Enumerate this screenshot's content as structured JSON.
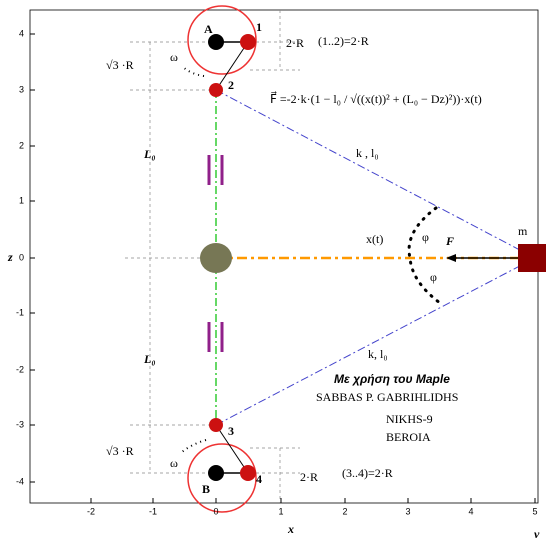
{
  "axes": {
    "x_label": "x",
    "z_label": "z",
    "v_label": "v",
    "x_ticks": [
      "-2",
      "-1",
      "0",
      "1",
      "2",
      "3",
      "4",
      "5"
    ],
    "z_ticks": [
      "4",
      "3",
      "2",
      "1",
      "0",
      "-1",
      "-2",
      "-3",
      "-4"
    ]
  },
  "top": {
    "point_a": "A",
    "point_1": "1",
    "point_2": "2",
    "omega": "ω",
    "distance": "2·R",
    "relation": "(1..2)=2·R",
    "sqrt3": "√3 ·R"
  },
  "bottom": {
    "point_b": "B",
    "point_4": "4",
    "point_3": "3",
    "omega": "ω",
    "distance": "2·R",
    "relation": "(3..4)=2·R",
    "sqrt3": "√3 ·R"
  },
  "formula": "F⃗ =-2·k·(1 − l₀ / √((x(t))² + (L₀ − Dz)²))·x(t)",
  "labels": {
    "spring_top": "k , l₀",
    "spring_bottom": "k, l₀",
    "length_top": "L₀",
    "length_bottom": "L₀",
    "xt": "x(t)",
    "phi_top": "φ",
    "phi_bottom": "φ",
    "force": "F⃗",
    "mass": "m"
  },
  "credits": {
    "maple": "Με χρήση του Maple",
    "author": "SABBAS P. GABRIHLIDHS",
    "street": "NIKHS-9",
    "city": "BEROIA"
  }
}
